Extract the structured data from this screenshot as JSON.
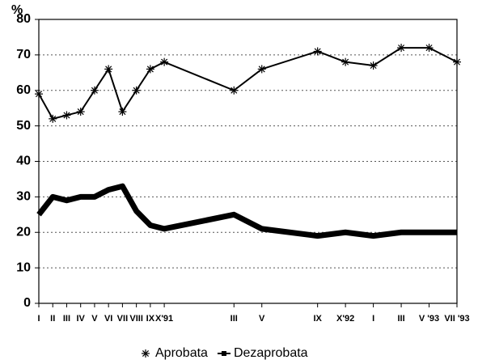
{
  "chart_data": {
    "type": "line",
    "ylabel": "%",
    "categories": [
      "I",
      "II",
      "III",
      "IV",
      "V",
      "VI",
      "VII",
      "VIII",
      "IX",
      "X'91",
      "III",
      "V",
      "IX",
      "X'92",
      "I",
      "III",
      "V '93",
      "VII '93"
    ],
    "series": [
      {
        "name": "Aprobata",
        "color": "#000000",
        "marker": "asterisk",
        "values": [
          59,
          52,
          53,
          54,
          60,
          66,
          54,
          60,
          66,
          68,
          60,
          66,
          71,
          68,
          67,
          72,
          72,
          68
        ]
      },
      {
        "name": "Dezaprobata",
        "color": "#000000",
        "values": [
          25,
          30,
          29,
          30,
          30,
          32,
          33,
          26,
          22,
          21,
          25,
          21,
          19,
          20,
          19,
          20,
          20,
          20
        ]
      }
    ],
    "ylim": [
      0,
      80
    ],
    "yticks": [
      0,
      10,
      20,
      30,
      40,
      50,
      60,
      70,
      80
    ],
    "grid": true,
    "legend": "bottom"
  }
}
